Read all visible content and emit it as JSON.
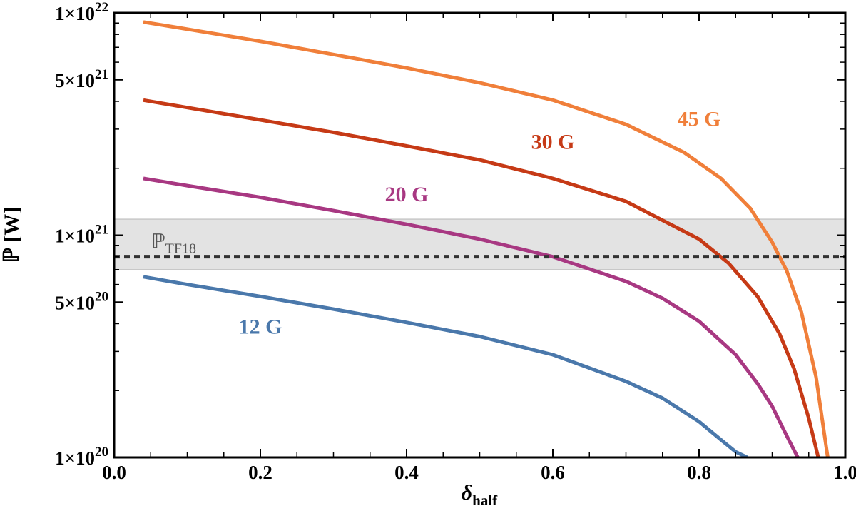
{
  "chart_data": {
    "type": "line",
    "xlabel": "δ",
    "xlabel_sub": "half",
    "ylabel": "ℙ [W]",
    "xlim": [
      0.0,
      1.0
    ],
    "ylim": [
      1e+20,
      1e+22
    ],
    "yscale": "log",
    "x_ticks": [
      {
        "value": 0.0,
        "label": "0.0"
      },
      {
        "value": 0.2,
        "label": "0.2"
      },
      {
        "value": 0.4,
        "label": "0.4"
      },
      {
        "value": 0.6,
        "label": "0.6"
      },
      {
        "value": 0.8,
        "label": "0.8"
      },
      {
        "value": 1.0,
        "label": "1.0"
      }
    ],
    "y_ticks": [
      {
        "value": 1e+20,
        "mantissa": "1",
        "exp": "20"
      },
      {
        "value": 5e+20,
        "mantissa": "5",
        "exp": "20"
      },
      {
        "value": 1e+21,
        "mantissa": "1",
        "exp": "21"
      },
      {
        "value": 5e+21,
        "mantissa": "5",
        "exp": "21"
      },
      {
        "value": 1e+22,
        "mantissa": "1",
        "exp": "22"
      }
    ],
    "series": [
      {
        "name": "12 G",
        "color": "#4a78ab",
        "x": [
          0.04,
          0.1,
          0.2,
          0.3,
          0.4,
          0.5,
          0.6,
          0.7,
          0.75,
          0.8,
          0.83,
          0.85,
          0.866
        ],
        "y": [
          6.5e+20,
          6e+20,
          5.3e+20,
          4.65e+20,
          4.05e+20,
          3.5e+20,
          2.9e+20,
          2.2e+20,
          1.85e+20,
          1.45e+20,
          1.2e+20,
          1.06e+20,
          1e+20
        ]
      },
      {
        "name": "20 G",
        "color": "#a83882",
        "x": [
          0.04,
          0.1,
          0.2,
          0.3,
          0.4,
          0.5,
          0.6,
          0.7,
          0.75,
          0.8,
          0.85,
          0.88,
          0.9,
          0.92,
          0.935
        ],
        "y": [
          1.8e+21,
          1.67e+21,
          1.48e+21,
          1.29e+21,
          1.12e+21,
          9.6e+20,
          8e+20,
          6.2e+20,
          5.2e+20,
          4.1e+20,
          2.9e+20,
          2.15e+20,
          1.7e+20,
          1.25e+20,
          1e+20
        ]
      },
      {
        "name": "30 G",
        "color": "#c63a16",
        "x": [
          0.04,
          0.1,
          0.2,
          0.3,
          0.4,
          0.5,
          0.6,
          0.7,
          0.8,
          0.84,
          0.88,
          0.91,
          0.93,
          0.95,
          0.963
        ],
        "y": [
          4.05e+21,
          3.75e+21,
          3.3e+21,
          2.9e+21,
          2.52e+21,
          2.18e+21,
          1.8e+21,
          1.42e+21,
          9.6e+20,
          7.5e+20,
          5.3e+20,
          3.6e+20,
          2.5e+20,
          1.5e+20,
          1e+20
        ]
      },
      {
        "name": "45 G",
        "color": "#f07f3a",
        "x": [
          0.04,
          0.1,
          0.2,
          0.3,
          0.4,
          0.5,
          0.6,
          0.7,
          0.78,
          0.83,
          0.87,
          0.9,
          0.92,
          0.94,
          0.96,
          0.976
        ],
        "y": [
          9.1e+21,
          8.45e+21,
          7.45e+21,
          6.5e+21,
          5.65e+21,
          4.85e+21,
          4.05e+21,
          3.15e+21,
          2.35e+21,
          1.8e+21,
          1.32e+21,
          9.3e+20,
          6.9e+20,
          4.5e+20,
          2.3e+20,
          1e+20
        ]
      }
    ],
    "series_labels": [
      {
        "text": "12 G",
        "x": 0.2,
        "y": 3.6e+20,
        "color": "#4a78ab"
      },
      {
        "text": "20 G",
        "x": 0.4,
        "y": 1.42e+21,
        "color": "#a83882"
      },
      {
        "text": "30 G",
        "x": 0.6,
        "y": 2.45e+21,
        "color": "#c63a16"
      },
      {
        "text": "45 G",
        "x": 0.8,
        "y": 3.1e+21,
        "color": "#f07f3a"
      }
    ],
    "reference": {
      "label": "ℙ",
      "label_sub": "TF18",
      "value": 8e+20,
      "band": [
        7e+20,
        1.18e+21
      ],
      "line_color": "#333333",
      "band_color": "#e3e3e3"
    }
  }
}
